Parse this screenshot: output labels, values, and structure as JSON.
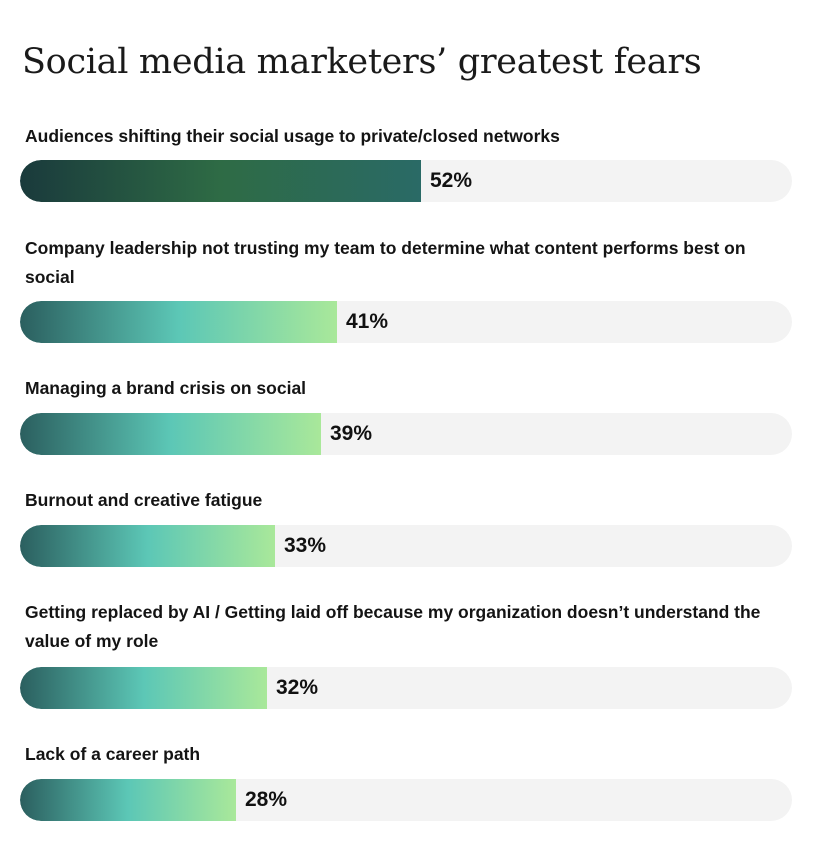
{
  "chart_data": {
    "type": "bar",
    "orientation": "horizontal",
    "title": "Social media marketers’ greatest fears",
    "xlim": [
      0,
      100
    ],
    "unit": "%",
    "grid": false,
    "categories": [
      "Audiences shifting their social usage to private/closed networks",
      "Company leadership not trusting my team to determine what content performs best on social",
      "Managing a brand crisis on social",
      "Burnout and creative fatigue",
      "Getting replaced by AI / Getting laid off because my organization doesn’t understand the value of my role",
      "Lack of a career path"
    ],
    "values": [
      52,
      41,
      39,
      33,
      32,
      28
    ],
    "value_labels": [
      "52%",
      "41%",
      "39%",
      "33%",
      "32%",
      "28%"
    ]
  },
  "colors": {
    "track": "#f3f3f3",
    "highlight_gradient": [
      "#1a3a3c",
      "#2e6b45",
      "#2a6a66"
    ],
    "standard_gradient": [
      "#2b5f5f",
      "#5cc7b6",
      "#a9e89a"
    ]
  }
}
